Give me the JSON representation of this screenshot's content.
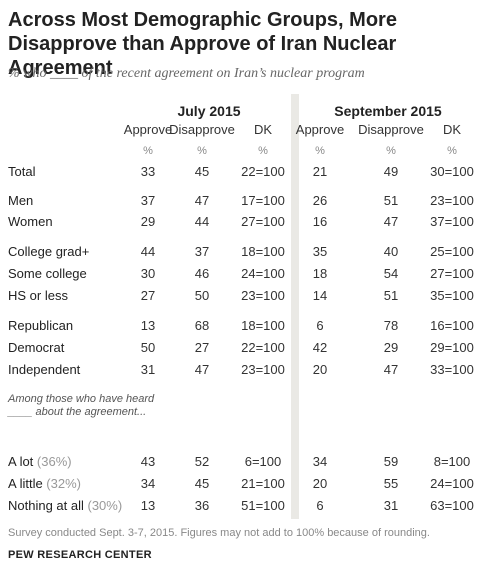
{
  "title": "Across Most Demographic Groups, More Disapprove than Approve of Iran Nuclear Agreement",
  "subtitle": "% who ____ of the recent agreement on Iran’s nuclear program",
  "note": "Among those who have heard ____ about the agreement...",
  "footnote": "Survey conducted Sept. 3-7, 2015. Figures may not add to 100% because of rounding.",
  "source": "PEW RESEARCH CENTER",
  "colors": {
    "divider": "#eae9e5",
    "muted": "#999999",
    "text": "#333333"
  },
  "chart_data": {
    "type": "table",
    "groups": [
      "July 2015",
      "September 2015"
    ],
    "columns": [
      "Approve",
      "Disapprove",
      "DK"
    ],
    "units": "%",
    "rows": [
      {
        "label": "Total",
        "sub": "",
        "values": [
          "33",
          "45",
          "22=100",
          "21",
          "49",
          "30=100"
        ]
      },
      {
        "label": "Men",
        "sub": "",
        "values": [
          "37",
          "47",
          "17=100",
          "26",
          "51",
          "23=100"
        ]
      },
      {
        "label": "Women",
        "sub": "",
        "values": [
          "29",
          "44",
          "27=100",
          "16",
          "47",
          "37=100"
        ]
      },
      {
        "label": "College grad+",
        "sub": "",
        "values": [
          "44",
          "37",
          "18=100",
          "35",
          "40",
          "25=100"
        ]
      },
      {
        "label": "Some college",
        "sub": "",
        "values": [
          "30",
          "46",
          "24=100",
          "18",
          "54",
          "27=100"
        ]
      },
      {
        "label": "HS or less",
        "sub": "",
        "values": [
          "27",
          "50",
          "23=100",
          "14",
          "51",
          "35=100"
        ]
      },
      {
        "label": "Republican",
        "sub": "",
        "values": [
          "13",
          "68",
          "18=100",
          "6",
          "78",
          "16=100"
        ]
      },
      {
        "label": "Democrat",
        "sub": "",
        "values": [
          "50",
          "27",
          "22=100",
          "42",
          "29",
          "29=100"
        ]
      },
      {
        "label": "Independent",
        "sub": "",
        "values": [
          "31",
          "47",
          "23=100",
          "20",
          "47",
          "33=100"
        ]
      },
      {
        "label": "A lot ",
        "sub": "(36%)",
        "values": [
          "43",
          "52",
          "6=100",
          "34",
          "59",
          "8=100"
        ]
      },
      {
        "label": "A little ",
        "sub": "(32%)",
        "values": [
          "34",
          "45",
          "21=100",
          "20",
          "55",
          "24=100"
        ]
      },
      {
        "label": "Nothing at all ",
        "sub": "(30%)",
        "values": [
          "13",
          "36",
          "51=100",
          "6",
          "31",
          "63=100"
        ]
      }
    ]
  }
}
